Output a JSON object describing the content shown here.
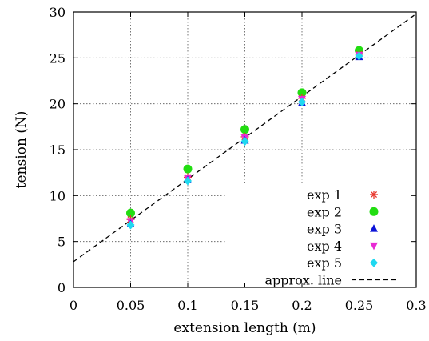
{
  "chart_data": {
    "type": "scatter",
    "xlabel": "extension length (m)",
    "ylabel": "tension (N)",
    "xlim": [
      0,
      0.3
    ],
    "ylim": [
      0,
      30
    ],
    "x_ticks": [
      0,
      0.05,
      0.1,
      0.15,
      0.2,
      0.25,
      0.3
    ],
    "x_tick_labels": [
      "0",
      "0.05",
      "0.1",
      "0.15",
      "0.2",
      "0.25",
      "0.3"
    ],
    "y_ticks": [
      0,
      5,
      10,
      15,
      20,
      25,
      30
    ],
    "y_tick_labels": [
      "0",
      "5",
      "10",
      "15",
      "20",
      "25",
      "30"
    ],
    "grid": true,
    "legend_position": "bottom-right",
    "series": [
      {
        "name": "exp 1",
        "marker": "asterisk",
        "color": "#e8352b",
        "x": [
          0.05,
          0.1,
          0.15,
          0.2,
          0.25
        ],
        "y": [
          7.4,
          12.0,
          16.4,
          20.6,
          25.4
        ]
      },
      {
        "name": "exp 2",
        "marker": "circle",
        "color": "#22dd11",
        "x": [
          0.05,
          0.1,
          0.15,
          0.2,
          0.25
        ],
        "y": [
          8.1,
          12.9,
          17.2,
          21.2,
          25.8
        ]
      },
      {
        "name": "exp 3",
        "marker": "triangle-up",
        "color": "#0b13d8",
        "x": [
          0.05,
          0.1,
          0.15,
          0.2,
          0.25
        ],
        "y": [
          6.9,
          11.7,
          16.0,
          20.1,
          25.1
        ]
      },
      {
        "name": "exp 4",
        "marker": "triangle-down",
        "color": "#e82ad4",
        "x": [
          0.05,
          0.1,
          0.15,
          0.2,
          0.25
        ],
        "y": [
          7.2,
          11.9,
          16.3,
          20.5,
          25.3
        ]
      },
      {
        "name": "exp 5",
        "marker": "diamond",
        "color": "#1fd8f0",
        "x": [
          0.05,
          0.1,
          0.15,
          0.2,
          0.25
        ],
        "y": [
          6.8,
          11.6,
          15.9,
          20.2,
          25.2
        ]
      }
    ],
    "fit_line": {
      "name": "approx. line",
      "style": "dashed",
      "color": "#000000",
      "intercept": 2.8,
      "slope": 90.0
    }
  }
}
